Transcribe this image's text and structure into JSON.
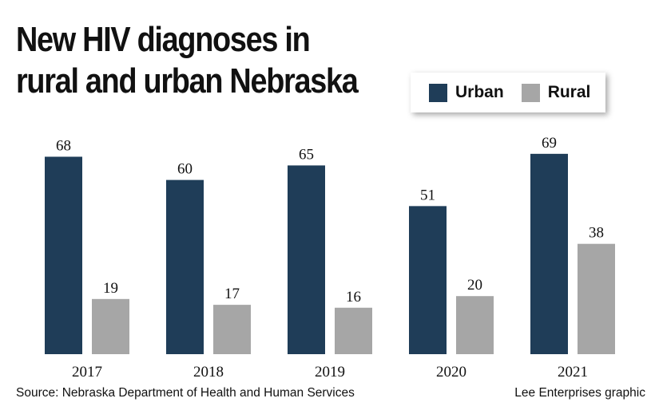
{
  "header": {
    "title": "New HIV diagnoses in rural and urban Nebraska"
  },
  "legend": {
    "items": [
      {
        "label": "Urban",
        "color": "#1f3d58"
      },
      {
        "label": "Rural",
        "color": "#a6a6a6"
      }
    ]
  },
  "footer": {
    "source": "Source: Nebraska Department of Health and Human Services",
    "credit": "Lee Enterprises graphic"
  },
  "chart_data": {
    "type": "bar",
    "title": "New HIV diagnoses in rural and urban Nebraska",
    "xlabel": "",
    "ylabel": "",
    "categories": [
      "2017",
      "2018",
      "2019",
      "2020",
      "2021"
    ],
    "series": [
      {
        "name": "Urban",
        "color": "#1f3d58",
        "values": [
          68,
          60,
          65,
          51,
          69
        ]
      },
      {
        "name": "Rural",
        "color": "#a6a6a6",
        "values": [
          19,
          17,
          16,
          20,
          38
        ]
      }
    ],
    "ylim": [
      0,
      70
    ],
    "grid": false,
    "legend": "top-right",
    "data_labels": true
  }
}
